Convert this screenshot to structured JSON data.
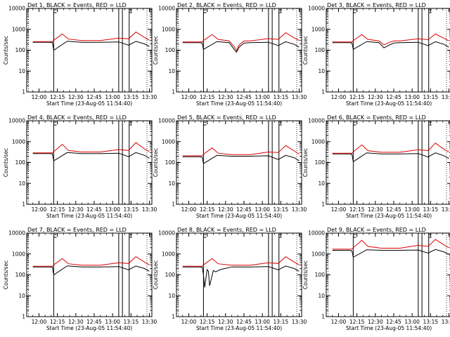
{
  "figure": {
    "colors": {
      "events": "#000000",
      "lld": "#dd0000",
      "axes": "#000000",
      "background": "#ffffff"
    }
  },
  "chart_data": [
    {
      "type": "line",
      "title": "Det 1, BLACK = Events, RED = LLD",
      "xlabel": "Start Time (23-Aug-05 11:54:40)",
      "ylabel": "Counts/sec",
      "yscale": "log",
      "ylim": [
        1,
        10000
      ],
      "xlim_minutes": [
        -5,
        97
      ],
      "xtick_labels": [
        "12:00",
        "12:15",
        "12:30",
        "12:45",
        "13:00",
        "13:15",
        "13:30"
      ],
      "xtick_minutes": [
        5,
        20,
        35,
        50,
        65,
        80,
        95
      ],
      "ytick_labels": [
        "1",
        "10",
        "100",
        "1000",
        "10000"
      ],
      "vertical_markers_minutes": [
        17,
        70,
        73,
        78.5
      ],
      "marker_flag_minutes": [
        17,
        78.5
      ],
      "series": [
        {
          "name": "Events",
          "color": "black",
          "x": [
            0,
            14,
            16,
            17,
            28,
            40,
            55,
            70,
            78,
            84,
            91,
            95
          ],
          "y": [
            240,
            240,
            230,
            100,
            270,
            240,
            240,
            250,
            175,
            265,
            200,
            150
          ]
        },
        {
          "name": "LLD",
          "color": "red",
          "x": [
            0,
            14,
            16,
            17,
            24,
            29,
            40,
            55,
            70,
            78,
            84,
            91,
            95
          ],
          "y": [
            260,
            260,
            260,
            300,
            600,
            340,
            290,
            290,
            380,
            350,
            740,
            410,
            300
          ]
        }
      ]
    },
    {
      "type": "line",
      "title": "Det 2, BLACK = Events, RED = LLD",
      "xlabel": "Start Time (23-Aug-05 11:54:40)",
      "ylabel": "Counts/sec",
      "yscale": "log",
      "ylim": [
        1,
        10000
      ],
      "xlim_minutes": [
        -5,
        97
      ],
      "xtick_labels": [
        "12:00",
        "12:15",
        "12:30",
        "12:45",
        "13:00",
        "13:15",
        "13:30"
      ],
      "xtick_minutes": [
        5,
        20,
        35,
        50,
        65,
        80,
        95
      ],
      "ytick_labels": [
        "1",
        "10",
        "100",
        "1000",
        "10000"
      ],
      "vertical_markers_minutes": [
        17,
        70,
        73,
        78.5
      ],
      "marker_flag_minutes": [
        17,
        78.5
      ],
      "series": [
        {
          "name": "Events",
          "color": "black",
          "x": [
            0,
            14,
            16,
            17,
            28,
            38,
            42,
            44,
            46,
            50,
            55,
            70,
            78,
            84,
            91,
            95
          ],
          "y": [
            230,
            230,
            220,
            110,
            260,
            230,
            110,
            80,
            140,
            220,
            230,
            240,
            165,
            255,
            190,
            140
          ]
        },
        {
          "name": "LLD",
          "color": "red",
          "x": [
            0,
            14,
            16,
            17,
            24,
            29,
            38,
            42,
            44,
            46,
            50,
            55,
            70,
            78,
            84,
            91,
            95
          ],
          "y": [
            250,
            250,
            250,
            290,
            560,
            330,
            280,
            150,
            95,
            180,
            280,
            280,
            360,
            330,
            690,
            390,
            290
          ]
        }
      ]
    },
    {
      "type": "line",
      "title": "Det 3, BLACK = Events, RED = LLD",
      "xlabel": "Start Time (23-Aug-05 11:54:40)",
      "ylabel": "Counts/sec",
      "yscale": "log",
      "ylim": [
        1,
        10000
      ],
      "xlim_minutes": [
        -5,
        97
      ],
      "xtick_labels": [
        "12:00",
        "12:15",
        "12:30",
        "12:45",
        "13:00",
        "13:15",
        "13:30"
      ],
      "xtick_minutes": [
        5,
        20,
        35,
        50,
        65,
        80,
        95
      ],
      "ytick_labels": [
        "1",
        "10",
        "100",
        "1000",
        "10000"
      ],
      "vertical_markers_minutes": [
        17,
        70,
        73,
        78.5
      ],
      "marker_flag_minutes": [
        17,
        78.5
      ],
      "series": [
        {
          "name": "Events",
          "color": "black",
          "x": [
            0,
            14,
            16,
            17,
            28,
            38,
            42,
            46,
            50,
            55,
            70,
            78,
            84,
            91,
            95
          ],
          "y": [
            230,
            230,
            220,
            110,
            260,
            230,
            130,
            170,
            220,
            230,
            240,
            165,
            255,
            190,
            140
          ]
        },
        {
          "name": "LLD",
          "color": "red",
          "x": [
            0,
            14,
            16,
            17,
            24,
            29,
            38,
            42,
            46,
            50,
            55,
            70,
            78,
            84,
            91,
            95
          ],
          "y": [
            250,
            250,
            250,
            290,
            560,
            330,
            280,
            180,
            230,
            280,
            280,
            350,
            320,
            600,
            370,
            280
          ]
        }
      ]
    },
    {
      "type": "line",
      "title": "Det 4, BLACK = Events, RED = LLD",
      "xlabel": "Start Time (23-Aug-05 11:54:40)",
      "ylabel": "Counts/sec",
      "yscale": "log",
      "ylim": [
        1,
        10000
      ],
      "xlim_minutes": [
        -5,
        97
      ],
      "xtick_labels": [
        "12:00",
        "12:15",
        "12:30",
        "12:45",
        "13:00",
        "13:15",
        "13:30"
      ],
      "xtick_minutes": [
        5,
        20,
        35,
        50,
        65,
        80,
        95
      ],
      "ytick_labels": [
        "1",
        "10",
        "100",
        "1000",
        "10000"
      ],
      "vertical_markers_minutes": [
        17,
        70,
        73,
        78.5
      ],
      "marker_flag_minutes": [
        17,
        78.5
      ],
      "series": [
        {
          "name": "Events",
          "color": "black",
          "x": [
            0,
            14,
            16,
            17,
            28,
            40,
            55,
            70,
            78,
            84,
            91,
            95
          ],
          "y": [
            270,
            270,
            260,
            120,
            300,
            270,
            270,
            280,
            190,
            300,
            220,
            160
          ]
        },
        {
          "name": "LLD",
          "color": "red",
          "x": [
            0,
            14,
            16,
            17,
            24,
            29,
            40,
            55,
            70,
            78,
            84,
            91,
            95
          ],
          "y": [
            290,
            290,
            290,
            330,
            750,
            380,
            320,
            320,
            420,
            380,
            900,
            450,
            330
          ]
        }
      ]
    },
    {
      "type": "line",
      "title": "Det 5, BLACK = Events, RED = LLD",
      "xlabel": "Start Time (23-Aug-05 11:54:40)",
      "ylabel": "Counts/sec",
      "yscale": "log",
      "ylim": [
        1,
        10000
      ],
      "xlim_minutes": [
        -5,
        97
      ],
      "xtick_labels": [
        "12:00",
        "12:15",
        "12:30",
        "12:45",
        "13:00",
        "13:15",
        "13:30"
      ],
      "xtick_minutes": [
        5,
        20,
        35,
        50,
        65,
        80,
        95
      ],
      "ytick_labels": [
        "1",
        "10",
        "100",
        "1000",
        "10000"
      ],
      "vertical_markers_minutes": [
        17,
        70,
        73,
        78.5
      ],
      "marker_flag_minutes": [
        17,
        78.5
      ],
      "series": [
        {
          "name": "Events",
          "color": "black",
          "x": [
            0,
            14,
            16,
            17,
            28,
            40,
            55,
            70,
            78,
            84,
            91,
            95
          ],
          "y": [
            190,
            190,
            180,
            90,
            220,
            200,
            200,
            210,
            140,
            220,
            170,
            120
          ]
        },
        {
          "name": "LLD",
          "color": "red",
          "x": [
            0,
            14,
            16,
            17,
            24,
            29,
            40,
            55,
            70,
            78,
            84,
            91,
            95
          ],
          "y": [
            210,
            210,
            210,
            250,
            500,
            280,
            240,
            240,
            320,
            300,
            650,
            360,
            250
          ]
        }
      ]
    },
    {
      "type": "line",
      "title": "Det 6, BLACK = Events, RED = LLD",
      "xlabel": "Start Time (23-Aug-05 11:54:40)",
      "ylabel": "Counts/sec",
      "yscale": "log",
      "ylim": [
        1,
        10000
      ],
      "xlim_minutes": [
        -5,
        97
      ],
      "xtick_labels": [
        "12:00",
        "12:15",
        "12:30",
        "12:45",
        "13:00",
        "13:15",
        "13:30"
      ],
      "xtick_minutes": [
        5,
        20,
        35,
        50,
        65,
        80,
        95
      ],
      "ytick_labels": [
        "1",
        "10",
        "100",
        "1000",
        "10000"
      ],
      "vertical_markers_minutes": [
        17,
        70,
        73,
        78.5
      ],
      "marker_flag_minutes": [
        17,
        78.5
      ],
      "series": [
        {
          "name": "Events",
          "color": "black",
          "x": [
            0,
            14,
            16,
            17,
            28,
            40,
            55,
            70,
            78,
            84,
            91,
            95
          ],
          "y": [
            260,
            260,
            250,
            110,
            290,
            260,
            260,
            270,
            185,
            290,
            210,
            155
          ]
        },
        {
          "name": "LLD",
          "color": "red",
          "x": [
            0,
            14,
            16,
            17,
            24,
            29,
            40,
            55,
            70,
            78,
            84,
            91,
            95
          ],
          "y": [
            280,
            280,
            280,
            320,
            700,
            370,
            310,
            310,
            410,
            370,
            850,
            430,
            320
          ]
        }
      ]
    },
    {
      "type": "line",
      "title": "Det 7, BLACK = Events, RED = LLD",
      "xlabel": "Start Time (23-Aug-05 11:54:40)",
      "ylabel": "Counts/sec",
      "yscale": "log",
      "ylim": [
        1,
        10000
      ],
      "xlim_minutes": [
        -5,
        97
      ],
      "xtick_labels": [
        "12:00",
        "12:15",
        "12:30",
        "12:45",
        "13:00",
        "13:15",
        "13:30"
      ],
      "xtick_minutes": [
        5,
        20,
        35,
        50,
        65,
        80,
        95
      ],
      "ytick_labels": [
        "1",
        "10",
        "100",
        "1000",
        "10000"
      ],
      "vertical_markers_minutes": [
        17,
        70,
        73,
        78.5
      ],
      "marker_flag_minutes": [
        17,
        78.5
      ],
      "series": [
        {
          "name": "Events",
          "color": "black",
          "x": [
            0,
            14,
            16,
            17,
            28,
            40,
            55,
            70,
            78,
            84,
            91,
            95
          ],
          "y": [
            240,
            240,
            230,
            100,
            270,
            240,
            240,
            250,
            175,
            265,
            200,
            150
          ]
        },
        {
          "name": "LLD",
          "color": "red",
          "x": [
            0,
            14,
            16,
            17,
            24,
            29,
            40,
            55,
            70,
            78,
            84,
            91,
            95
          ],
          "y": [
            260,
            260,
            260,
            300,
            600,
            340,
            290,
            290,
            380,
            350,
            740,
            410,
            300
          ]
        }
      ]
    },
    {
      "type": "line",
      "title": "Det 8, BLACK = Events, RED = LLD",
      "xlabel": "Start Time (23-Aug-05 11:54:40)",
      "ylabel": "Counts/sec",
      "yscale": "log",
      "ylim": [
        1,
        10000
      ],
      "xlim_minutes": [
        -5,
        97
      ],
      "xtick_labels": [
        "12:00",
        "12:15",
        "12:30",
        "12:45",
        "13:00",
        "13:15",
        "13:30"
      ],
      "xtick_minutes": [
        5,
        20,
        35,
        50,
        65,
        80,
        95
      ],
      "ytick_labels": [
        "1",
        "10",
        "100",
        "1000",
        "10000"
      ],
      "vertical_markers_minutes": [
        17,
        70,
        73,
        78.5
      ],
      "marker_flag_minutes": [
        17,
        78.5
      ],
      "series": [
        {
          "name": "Events",
          "color": "black",
          "x": [
            0,
            14,
            16,
            17,
            18,
            20,
            21,
            22,
            25,
            27,
            29,
            31,
            40,
            55,
            70,
            78,
            84,
            91,
            95
          ],
          "y": [
            240,
            240,
            230,
            100,
            25,
            180,
            150,
            30,
            160,
            140,
            160,
            180,
            240,
            240,
            250,
            175,
            265,
            200,
            150
          ]
        },
        {
          "name": "LLD",
          "color": "red",
          "x": [
            0,
            14,
            16,
            17,
            24,
            29,
            40,
            55,
            70,
            78,
            84,
            91,
            95
          ],
          "y": [
            260,
            260,
            260,
            300,
            600,
            340,
            290,
            290,
            380,
            350,
            740,
            410,
            300
          ]
        }
      ]
    },
    {
      "type": "line",
      "title": "Det 9, BLACK = Events, RED = LLD",
      "xlabel": "Start Time (23-Aug-05 11:54:40)",
      "ylabel": "Counts/sec",
      "yscale": "log",
      "ylim": [
        1,
        10000
      ],
      "xlim_minutes": [
        -5,
        97
      ],
      "xtick_labels": [
        "12:00",
        "12:15",
        "12:30",
        "12:45",
        "13:00",
        "13:15",
        "13:30"
      ],
      "xtick_minutes": [
        5,
        20,
        35,
        50,
        65,
        80,
        95
      ],
      "ytick_labels": [
        "1",
        "10",
        "100",
        "1000",
        "10000"
      ],
      "vertical_markers_minutes": [
        17,
        70,
        73,
        78.5
      ],
      "marker_flag_minutes": [
        17,
        78.5
      ],
      "series": [
        {
          "name": "Events",
          "color": "black",
          "x": [
            0,
            14,
            16,
            17,
            28,
            40,
            55,
            70,
            78,
            84,
            91,
            95
          ],
          "y": [
            1500,
            1500,
            1400,
            700,
            1600,
            1500,
            1500,
            1550,
            1100,
            1650,
            1250,
            950
          ]
        },
        {
          "name": "LLD",
          "color": "red",
          "x": [
            0,
            14,
            16,
            17,
            24,
            29,
            40,
            55,
            70,
            78,
            84,
            91,
            95
          ],
          "y": [
            1700,
            1700,
            1700,
            2000,
            4500,
            2300,
            1900,
            1900,
            2600,
            2300,
            5000,
            2700,
            2000
          ]
        }
      ]
    }
  ]
}
